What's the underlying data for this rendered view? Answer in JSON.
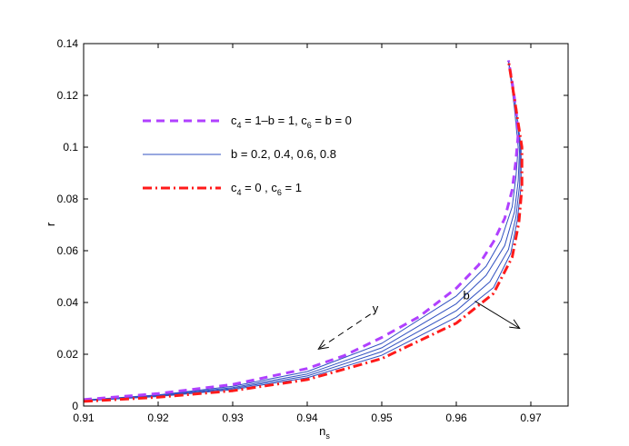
{
  "chart_data": {
    "type": "line",
    "xlabel": "n",
    "xlabel_sub": "s",
    "ylabel": "r",
    "xlim": [
      0.91,
      0.975
    ],
    "ylim": [
      0,
      0.14
    ],
    "xticks": [
      "0.91",
      "0.92",
      "0.93",
      "0.94",
      "0.95",
      "0.96",
      "0.97"
    ],
    "yticks": [
      "0",
      "0.02",
      "0.04",
      "0.06",
      "0.08",
      "0.1",
      "0.12",
      "0.14"
    ],
    "grid": false,
    "legend_position": "upper-left",
    "series": [
      {
        "color": "#b040ff",
        "style": "dashed",
        "x": [
          0.91,
          0.92,
          0.93,
          0.94,
          0.945,
          0.95,
          0.955,
          0.96,
          0.963,
          0.965,
          0.9665,
          0.9675,
          0.968,
          0.9683,
          0.968,
          0.9675,
          0.967
        ],
        "y": [
          0.0025,
          0.0048,
          0.0083,
          0.0145,
          0.0195,
          0.0265,
          0.0345,
          0.0455,
          0.0545,
          0.0635,
          0.0725,
          0.0835,
          0.095,
          0.105,
          0.115,
          0.125,
          0.1335
        ]
      },
      {
        "color": "#3050c0",
        "style": "solid",
        "x": [
          0.91,
          0.92,
          0.93,
          0.94,
          0.95,
          0.96,
          0.964,
          0.966,
          0.9675,
          0.968,
          0.9683,
          0.9678,
          0.967
        ],
        "y": [
          0.0023,
          0.0043,
          0.0076,
          0.0133,
          0.0242,
          0.0425,
          0.054,
          0.064,
          0.077,
          0.0885,
          0.1,
          0.115,
          0.1335
        ]
      },
      {
        "color": "#3050c0",
        "style": "solid",
        "x": [
          0.91,
          0.92,
          0.93,
          0.94,
          0.95,
          0.96,
          0.964,
          0.9665,
          0.9678,
          0.9683,
          0.9685,
          0.968,
          0.967
        ],
        "y": [
          0.0022,
          0.0041,
          0.0071,
          0.0124,
          0.0225,
          0.0395,
          0.0505,
          0.062,
          0.075,
          0.087,
          0.1,
          0.115,
          0.1335
        ]
      },
      {
        "color": "#3050c0",
        "style": "solid",
        "x": [
          0.91,
          0.92,
          0.93,
          0.94,
          0.95,
          0.96,
          0.9645,
          0.967,
          0.968,
          0.9685,
          0.9686,
          0.968,
          0.967
        ],
        "y": [
          0.0021,
          0.0039,
          0.0067,
          0.0116,
          0.021,
          0.0368,
          0.048,
          0.0605,
          0.073,
          0.0855,
          0.1,
          0.115,
          0.1335
        ]
      },
      {
        "color": "#3050c0",
        "style": "solid",
        "x": [
          0.91,
          0.92,
          0.93,
          0.94,
          0.95,
          0.96,
          0.965,
          0.9673,
          0.9682,
          0.9687,
          0.9687,
          0.968,
          0.967
        ],
        "y": [
          0.002,
          0.0037,
          0.0063,
          0.0109,
          0.0196,
          0.0343,
          0.0458,
          0.059,
          0.072,
          0.085,
          0.1,
          0.115,
          0.1335
        ]
      },
      {
        "color": "#ff1a1a",
        "style": "dashdot",
        "x": [
          0.91,
          0.92,
          0.93,
          0.94,
          0.95,
          0.96,
          0.965,
          0.9675,
          0.9684,
          0.9688,
          0.9688,
          0.968,
          0.967
        ],
        "y": [
          0.0018,
          0.0034,
          0.0059,
          0.0102,
          0.0183,
          0.032,
          0.0435,
          0.0575,
          0.071,
          0.0845,
          0.1,
          0.115,
          0.1335
        ]
      }
    ],
    "legend": [
      {
        "color": "#b040ff",
        "style": "dashed",
        "parts": [
          [
            "c",
            ""
          ],
          [
            "4",
            "sub"
          ],
          [
            " = 1–b = 1, c",
            ""
          ],
          [
            "6",
            "sub"
          ],
          [
            " = b = 0",
            ""
          ]
        ]
      },
      {
        "color": "#3050c0",
        "style": "solid",
        "parts": [
          [
            "b = 0.2, 0.4, 0.6, 0.8",
            ""
          ]
        ]
      },
      {
        "color": "#ff1a1a",
        "style": "dashdot",
        "parts": [
          [
            "c",
            ""
          ],
          [
            "4",
            "sub"
          ],
          [
            " = 0 ,  c",
            ""
          ],
          [
            "6",
            "sub"
          ],
          [
            " = 1",
            ""
          ]
        ]
      }
    ],
    "annotations": [
      {
        "text": "b",
        "from": [
          0.9625,
          0.0405
        ],
        "to": [
          0.9685,
          0.03
        ]
      },
      {
        "text": "y",
        "from": [
          0.9485,
          0.0355
        ],
        "to": [
          0.9415,
          0.022
        ]
      }
    ]
  }
}
